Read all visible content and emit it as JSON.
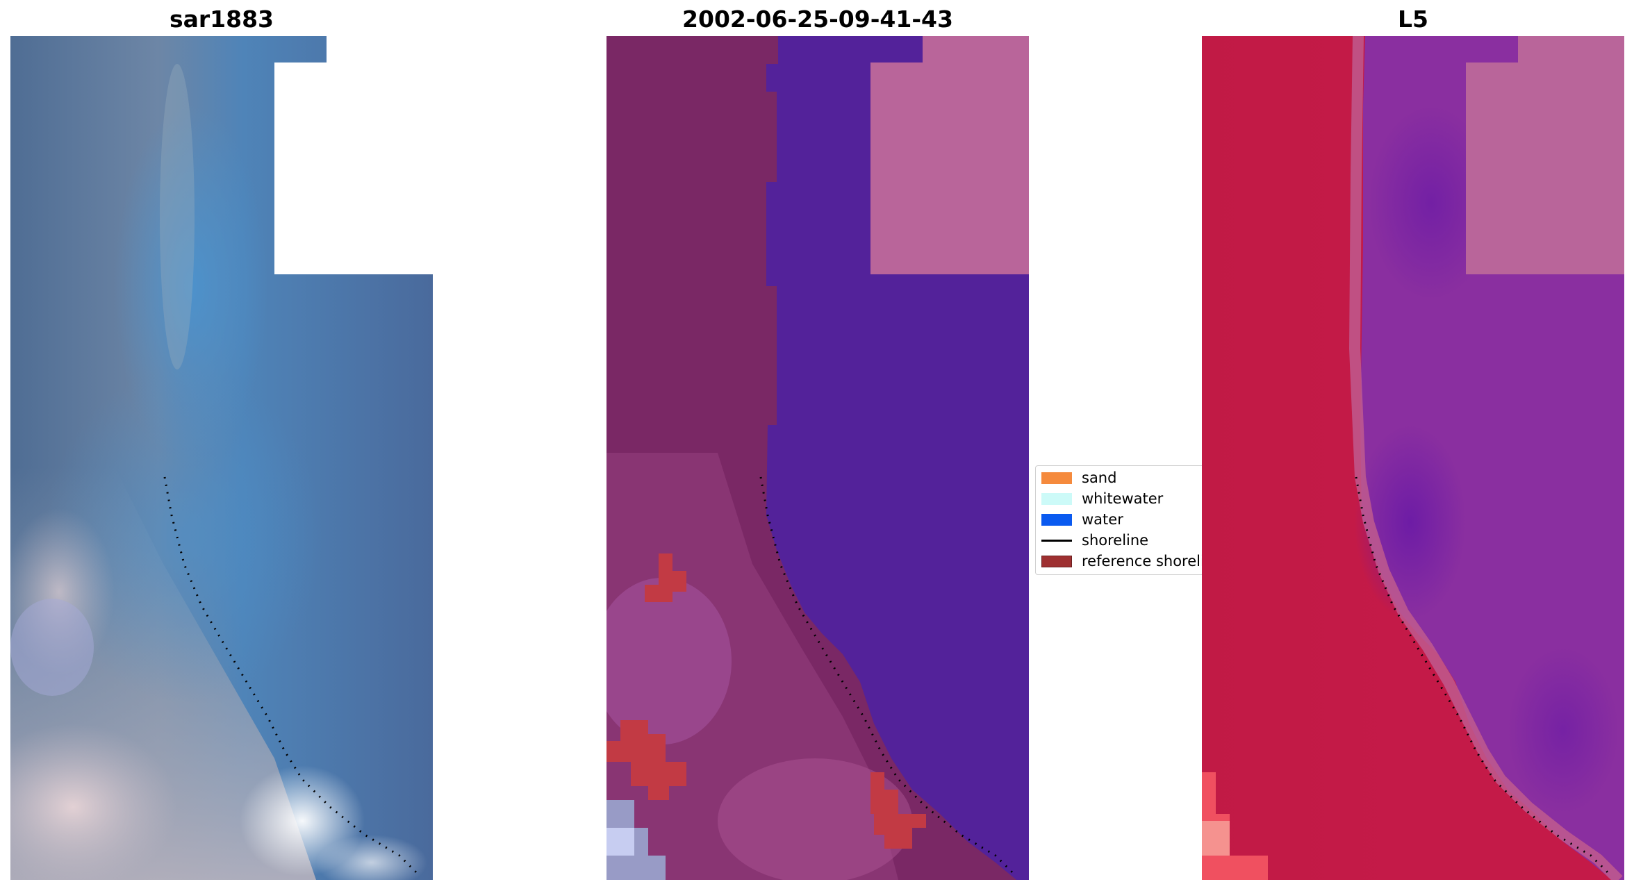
{
  "panels": [
    {
      "title": "sar1883"
    },
    {
      "title": "2002-06-25-09-41-43"
    },
    {
      "title": "L5"
    }
  ],
  "legend": {
    "items": [
      {
        "label": "sand",
        "kind": "patch",
        "color": "#f58a3d"
      },
      {
        "label": "whitewater",
        "kind": "patch",
        "color": "#ccfaf8"
      },
      {
        "label": "water",
        "kind": "patch",
        "color": "#0a5af0"
      },
      {
        "label": "shoreline",
        "kind": "line",
        "color": "#000000"
      },
      {
        "label": "reference shoreline",
        "kind": "patch",
        "color": "#9e3031"
      }
    ]
  },
  "colors": {
    "rgb_water": "#4a77a8",
    "rgb_land": "#8f99a8",
    "class_water": "#53229a",
    "class_land": "#7a2865",
    "class_nodata": "#b9659a",
    "class_reference": "#c23a44",
    "mndwi_land": "#c41a48",
    "mndwi_water": "#8a2fa0",
    "mndwi_nodata": "#b9659a"
  }
}
